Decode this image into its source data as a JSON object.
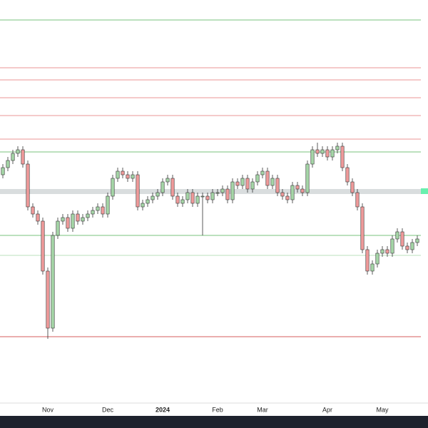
{
  "chart_data": {
    "type": "candlestick",
    "categories": [
      null,
      null,
      null,
      null,
      null,
      null,
      null,
      null,
      null,
      "Nov",
      null,
      null,
      null,
      null,
      null,
      null,
      null,
      null,
      null,
      null,
      null,
      "Dec",
      null,
      null,
      null,
      null,
      null,
      null,
      null,
      null,
      null,
      null,
      "2024",
      null,
      null,
      null,
      null,
      null,
      null,
      null,
      null,
      null,
      null,
      "Feb",
      null,
      null,
      null,
      null,
      null,
      null,
      null,
      null,
      "Mar",
      null,
      null,
      null,
      null,
      null,
      null,
      null,
      null,
      null,
      null,
      null,
      null,
      "Apr",
      null,
      null,
      null,
      null,
      null,
      null,
      null,
      null,
      null,
      null,
      "May",
      null,
      null,
      null,
      null,
      null,
      null,
      null
    ],
    "ohlc": [
      [
        355,
        370,
        350,
        365
      ],
      [
        365,
        380,
        360,
        375
      ],
      [
        375,
        390,
        370,
        385
      ],
      [
        385,
        395,
        380,
        390
      ],
      [
        390,
        395,
        365,
        370
      ],
      [
        370,
        375,
        305,
        310
      ],
      [
        310,
        315,
        295,
        300
      ],
      [
        300,
        305,
        285,
        290
      ],
      [
        290,
        295,
        215,
        220
      ],
      [
        220,
        225,
        125,
        140
      ],
      [
        140,
        275,
        135,
        270
      ],
      [
        270,
        295,
        265,
        290
      ],
      [
        290,
        300,
        285,
        295
      ],
      [
        295,
        300,
        275,
        280
      ],
      [
        280,
        305,
        275,
        300
      ],
      [
        300,
        305,
        285,
        290
      ],
      [
        290,
        300,
        285,
        295
      ],
      [
        295,
        305,
        290,
        300
      ],
      [
        300,
        310,
        295,
        305
      ],
      [
        305,
        315,
        300,
        310
      ],
      [
        310,
        315,
        295,
        300
      ],
      [
        300,
        330,
        295,
        325
      ],
      [
        325,
        355,
        320,
        350
      ],
      [
        350,
        365,
        345,
        360
      ],
      [
        360,
        365,
        350,
        355
      ],
      [
        355,
        360,
        345,
        350
      ],
      [
        350,
        360,
        345,
        355
      ],
      [
        355,
        360,
        305,
        310
      ],
      [
        310,
        320,
        305,
        315
      ],
      [
        315,
        325,
        310,
        320
      ],
      [
        320,
        330,
        315,
        325
      ],
      [
        325,
        335,
        320,
        330
      ],
      [
        330,
        350,
        325,
        345
      ],
      [
        345,
        355,
        340,
        350
      ],
      [
        350,
        355,
        320,
        325
      ],
      [
        325,
        330,
        310,
        315
      ],
      [
        315,
        325,
        310,
        320
      ],
      [
        320,
        335,
        315,
        330
      ],
      [
        330,
        335,
        310,
        315
      ],
      [
        315,
        330,
        310,
        325
      ],
      [
        325,
        330,
        270,
        325
      ],
      [
        325,
        330,
        315,
        320
      ],
      [
        320,
        335,
        315,
        330
      ],
      [
        330,
        335,
        325,
        330
      ],
      [
        330,
        340,
        325,
        335
      ],
      [
        335,
        340,
        315,
        320
      ],
      [
        320,
        350,
        315,
        345
      ],
      [
        345,
        350,
        335,
        340
      ],
      [
        340,
        355,
        335,
        350
      ],
      [
        350,
        355,
        330,
        335
      ],
      [
        335,
        350,
        330,
        345
      ],
      [
        345,
        360,
        340,
        355
      ],
      [
        355,
        365,
        350,
        360
      ],
      [
        360,
        365,
        335,
        340
      ],
      [
        340,
        355,
        335,
        350
      ],
      [
        350,
        355,
        325,
        330
      ],
      [
        330,
        335,
        320,
        325
      ],
      [
        325,
        330,
        315,
        320
      ],
      [
        320,
        345,
        315,
        340
      ],
      [
        340,
        345,
        330,
        335
      ],
      [
        335,
        340,
        325,
        330
      ],
      [
        330,
        375,
        325,
        370
      ],
      [
        370,
        395,
        365,
        390
      ],
      [
        390,
        400,
        380,
        385
      ],
      [
        385,
        395,
        380,
        390
      ],
      [
        390,
        395,
        375,
        380
      ],
      [
        380,
        395,
        375,
        390
      ],
      [
        390,
        400,
        385,
        395
      ],
      [
        395,
        400,
        360,
        365
      ],
      [
        365,
        370,
        340,
        345
      ],
      [
        345,
        350,
        325,
        330
      ],
      [
        330,
        335,
        305,
        310
      ],
      [
        310,
        315,
        245,
        250
      ],
      [
        250,
        255,
        215,
        220
      ],
      [
        220,
        235,
        215,
        230
      ],
      [
        230,
        250,
        225,
        245
      ],
      [
        245,
        255,
        240,
        250
      ],
      [
        250,
        255,
        240,
        245
      ],
      [
        245,
        270,
        240,
        265
      ],
      [
        265,
        280,
        260,
        275
      ],
      [
        275,
        280,
        250,
        255
      ],
      [
        255,
        260,
        245,
        250
      ],
      [
        250,
        265,
        245,
        260
      ],
      [
        260,
        270,
        255,
        265
      ]
    ],
    "up_color": "#a5d6a7",
    "down_color": "#ef9a9a",
    "edge_color": "#333333",
    "ylim": [
      35,
      600
    ],
    "levels": [
      {
        "value": 572,
        "color": "#4caf50"
      },
      {
        "value": 505,
        "color": "#e57373"
      },
      {
        "value": 488,
        "color": "#e57373"
      },
      {
        "value": 463,
        "color": "#e57373"
      },
      {
        "value": 438,
        "color": "#e57373"
      },
      {
        "value": 405,
        "color": "#e57373"
      },
      {
        "value": 387,
        "color": "#4caf50"
      },
      {
        "value": 270,
        "color": "#4caf50"
      },
      {
        "value": 242,
        "color": "#a5d6a7"
      },
      {
        "value": 128,
        "color": "#c62828"
      }
    ],
    "band": [
      328,
      335
    ]
  }
}
